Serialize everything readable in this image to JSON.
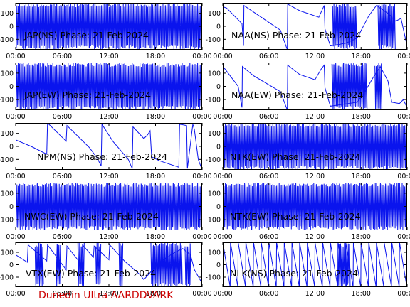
{
  "footer": "Dunedin Ultra AARDDVARK",
  "colors": {
    "trace": "#0a14ee",
    "frame": "#000000",
    "footer": "#cc0000"
  },
  "chart_data": [
    {
      "type": "line",
      "title": "JAP(NS) Phase: 21-Feb-2024",
      "x_ticks": [
        "00:00",
        "06:00",
        "12:00",
        "18:00",
        "00:00"
      ],
      "y_ticks": [
        100,
        0,
        -100
      ],
      "ylim": [
        -180,
        180
      ],
      "xlim_hours": [
        0,
        24
      ],
      "trace": {
        "mode": "noise",
        "segments": [
          [
            0,
            24
          ]
        ]
      }
    },
    {
      "type": "line",
      "title": "NAA(NS) Phase: 21-Feb-2024",
      "x_ticks": [
        "00:00",
        "06:00",
        "12:00",
        "18:00",
        "00:00"
      ],
      "y_ticks": [
        100,
        0,
        -100
      ],
      "ylim": [
        -180,
        180
      ],
      "xlim_hours": [
        0,
        24
      ],
      "trace": {
        "mode": "ramps",
        "points": [
          [
            0,
            150
          ],
          [
            0.5,
            140
          ],
          [
            2.5,
            20
          ],
          [
            2.7,
            -150
          ],
          [
            2.75,
            160
          ],
          [
            7.5,
            -30
          ],
          [
            8.4,
            -180
          ],
          [
            8.45,
            170
          ],
          [
            10,
            120
          ],
          [
            12.5,
            70
          ],
          [
            13.2,
            160
          ],
          [
            13.3,
            -20
          ],
          [
            14,
            -150
          ],
          [
            16,
            -130
          ],
          [
            17.5,
            -90
          ],
          [
            19,
            80
          ],
          [
            20,
            160
          ],
          [
            21.5,
            100
          ],
          [
            22.5,
            40
          ],
          [
            23.2,
            60
          ],
          [
            23.8,
            -100
          ],
          [
            24,
            -160
          ]
        ]
      },
      "noise_segments": [
        [
          14.3,
          17.5
        ],
        [
          20.2,
          22.5
        ]
      ]
    },
    {
      "type": "line",
      "title": "JAP(EW) Phase: 21-Feb-2024",
      "x_ticks": [
        "00:00",
        "06:00",
        "12:00",
        "18:00",
        "00:00"
      ],
      "y_ticks": [
        100,
        0,
        -100
      ],
      "ylim": [
        -180,
        180
      ],
      "xlim_hours": [
        0,
        24
      ],
      "trace": {
        "mode": "noise",
        "segments": [
          [
            0,
            24
          ]
        ]
      }
    },
    {
      "type": "line",
      "title": "NAA(EW) Phase: 21-Feb-2024",
      "x_ticks": [
        "00:00",
        "06:00",
        "12:00",
        "18:00",
        "00:00"
      ],
      "y_ticks": [
        100,
        0,
        -100
      ],
      "ylim": [
        -180,
        180
      ],
      "xlim_hours": [
        0,
        24
      ],
      "trace": {
        "mode": "ramps",
        "points": [
          [
            0,
            150
          ],
          [
            0.3,
            130
          ],
          [
            2,
            0
          ],
          [
            2.5,
            -160
          ],
          [
            2.55,
            150
          ],
          [
            4,
            80
          ],
          [
            7.5,
            -40
          ],
          [
            8.4,
            -180
          ],
          [
            8.45,
            160
          ],
          [
            10,
            90
          ],
          [
            12,
            50
          ],
          [
            12.8,
            130
          ],
          [
            13.2,
            160
          ],
          [
            13.3,
            -10
          ],
          [
            14,
            -150
          ],
          [
            17.5,
            -120
          ],
          [
            18.5,
            -40
          ],
          [
            19.5,
            60
          ],
          [
            20.5,
            150
          ],
          [
            21.5,
            40
          ],
          [
            22,
            -120
          ],
          [
            23,
            -130
          ],
          [
            23.5,
            -100
          ],
          [
            23.9,
            -150
          ],
          [
            24,
            -170
          ]
        ]
      },
      "noise_segments": [
        [
          14.2,
          18.8
        ],
        [
          19.8,
          20.8
        ]
      ]
    },
    {
      "type": "line",
      "title": "NPM(NS) Phase: 21-Feb-2024",
      "x_ticks": [
        "00:00",
        "06:00",
        "12:00",
        "18:00",
        "00:00"
      ],
      "y_ticks": [
        100,
        0,
        -100
      ],
      "ylim": [
        -180,
        180
      ],
      "xlim_hours": [
        0,
        24
      ],
      "trace": {
        "mode": "ramps",
        "points": [
          [
            0,
            50
          ],
          [
            2,
            0
          ],
          [
            4,
            -60
          ],
          [
            4.1,
            180
          ],
          [
            6.5,
            40
          ],
          [
            6.6,
            160
          ],
          [
            9.5,
            -10
          ],
          [
            10.5,
            -90
          ],
          [
            11,
            -150
          ],
          [
            11.1,
            170
          ],
          [
            12.5,
            40
          ],
          [
            14.5,
            -100
          ],
          [
            15,
            -170
          ],
          [
            15.1,
            150
          ],
          [
            16.5,
            60
          ],
          [
            17,
            90
          ],
          [
            17.3,
            120
          ],
          [
            17.5,
            -80
          ],
          [
            18.5,
            -110
          ],
          [
            21,
            -160
          ],
          [
            21.1,
            170
          ],
          [
            22,
            160
          ],
          [
            22.1,
            -170
          ],
          [
            22.8,
            170
          ],
          [
            23,
            130
          ],
          [
            23.5,
            -100
          ],
          [
            24,
            -180
          ]
        ]
      },
      "noise_segments": []
    },
    {
      "type": "line",
      "title": "NTK(EW) Phase: 21-Feb-2024",
      "x_ticks": [
        "00:00",
        "06:00",
        "12:00",
        "18:00",
        "00:00"
      ],
      "y_ticks": [
        100,
        0,
        -100
      ],
      "ylim": [
        -180,
        180
      ],
      "xlim_hours": [
        0,
        24
      ],
      "trace": {
        "mode": "noise",
        "segments": [
          [
            0,
            24
          ]
        ]
      }
    },
    {
      "type": "line",
      "title": "NWC(EW) Phase: 21-Feb-2024",
      "x_ticks": [
        "00:00",
        "06:00",
        "12:00",
        "18:00",
        "00:00"
      ],
      "y_ticks": [
        100,
        0,
        -100
      ],
      "ylim": [
        -180,
        180
      ],
      "xlim_hours": [
        0,
        24
      ],
      "trace": {
        "mode": "noise",
        "segments": [
          [
            0,
            24
          ]
        ]
      }
    },
    {
      "type": "line",
      "title": "NTK(EW) Phase: 21-Feb-2024",
      "x_ticks": [
        "00:00",
        "06:00",
        "12:00",
        "18:00",
        "00:00"
      ],
      "y_ticks": [
        100,
        0,
        -100
      ],
      "ylim": [
        -180,
        180
      ],
      "xlim_hours": [
        0,
        24
      ],
      "trace": {
        "mode": "noise",
        "segments": [
          [
            0,
            24
          ]
        ]
      }
    },
    {
      "type": "line",
      "title": "VTX(EW) Phase: 21-Feb-2024",
      "x_ticks": [
        "00:00",
        "06:00",
        "12:00",
        "18:00",
        "00:00"
      ],
      "y_ticks": [
        100,
        0,
        -100
      ],
      "ylim": [
        -180,
        180
      ],
      "xlim_hours": [
        0,
        24
      ],
      "trace": {
        "mode": "ramps",
        "points": [
          [
            0,
            80
          ],
          [
            1.5,
            20
          ],
          [
            1.6,
            160
          ],
          [
            4,
            30
          ],
          [
            4.1,
            160
          ],
          [
            6.5,
            -40
          ],
          [
            6.6,
            150
          ],
          [
            8.5,
            0
          ],
          [
            8.6,
            160
          ],
          [
            10,
            60
          ],
          [
            10.1,
            150
          ],
          [
            12,
            40
          ],
          [
            12.1,
            160
          ],
          [
            14,
            30
          ],
          [
            16,
            -80
          ],
          [
            16.5,
            -120
          ],
          [
            18.5,
            20
          ],
          [
            20.5,
            100
          ],
          [
            21.5,
            130
          ],
          [
            22.5,
            80
          ],
          [
            23,
            -40
          ],
          [
            24,
            -150
          ]
        ]
      },
      "noise_segments": [
        [
          2.5,
          3.6
        ],
        [
          5.2,
          5.8
        ],
        [
          8.0,
          8.9
        ],
        [
          10.3,
          11.0
        ],
        [
          13.3,
          13.8
        ],
        [
          17.4,
          21.5
        ],
        [
          21.8,
          22.6
        ]
      ]
    },
    {
      "type": "line",
      "title": "NLK(NS) Phase: 21-Feb-2024",
      "x_ticks": [
        "00:00",
        "06:00",
        "12:00",
        "18:00",
        "00:00"
      ],
      "y_ticks": [
        100,
        0,
        -100
      ],
      "ylim": [
        -180,
        180
      ],
      "xlim_hours": [
        0,
        24
      ],
      "trace": {
        "mode": "sawtooth",
        "period_hours": 1,
        "span": [
          0,
          24
        ]
      },
      "noise_segments": [
        [
          15.0,
          16.6
        ]
      ]
    }
  ]
}
